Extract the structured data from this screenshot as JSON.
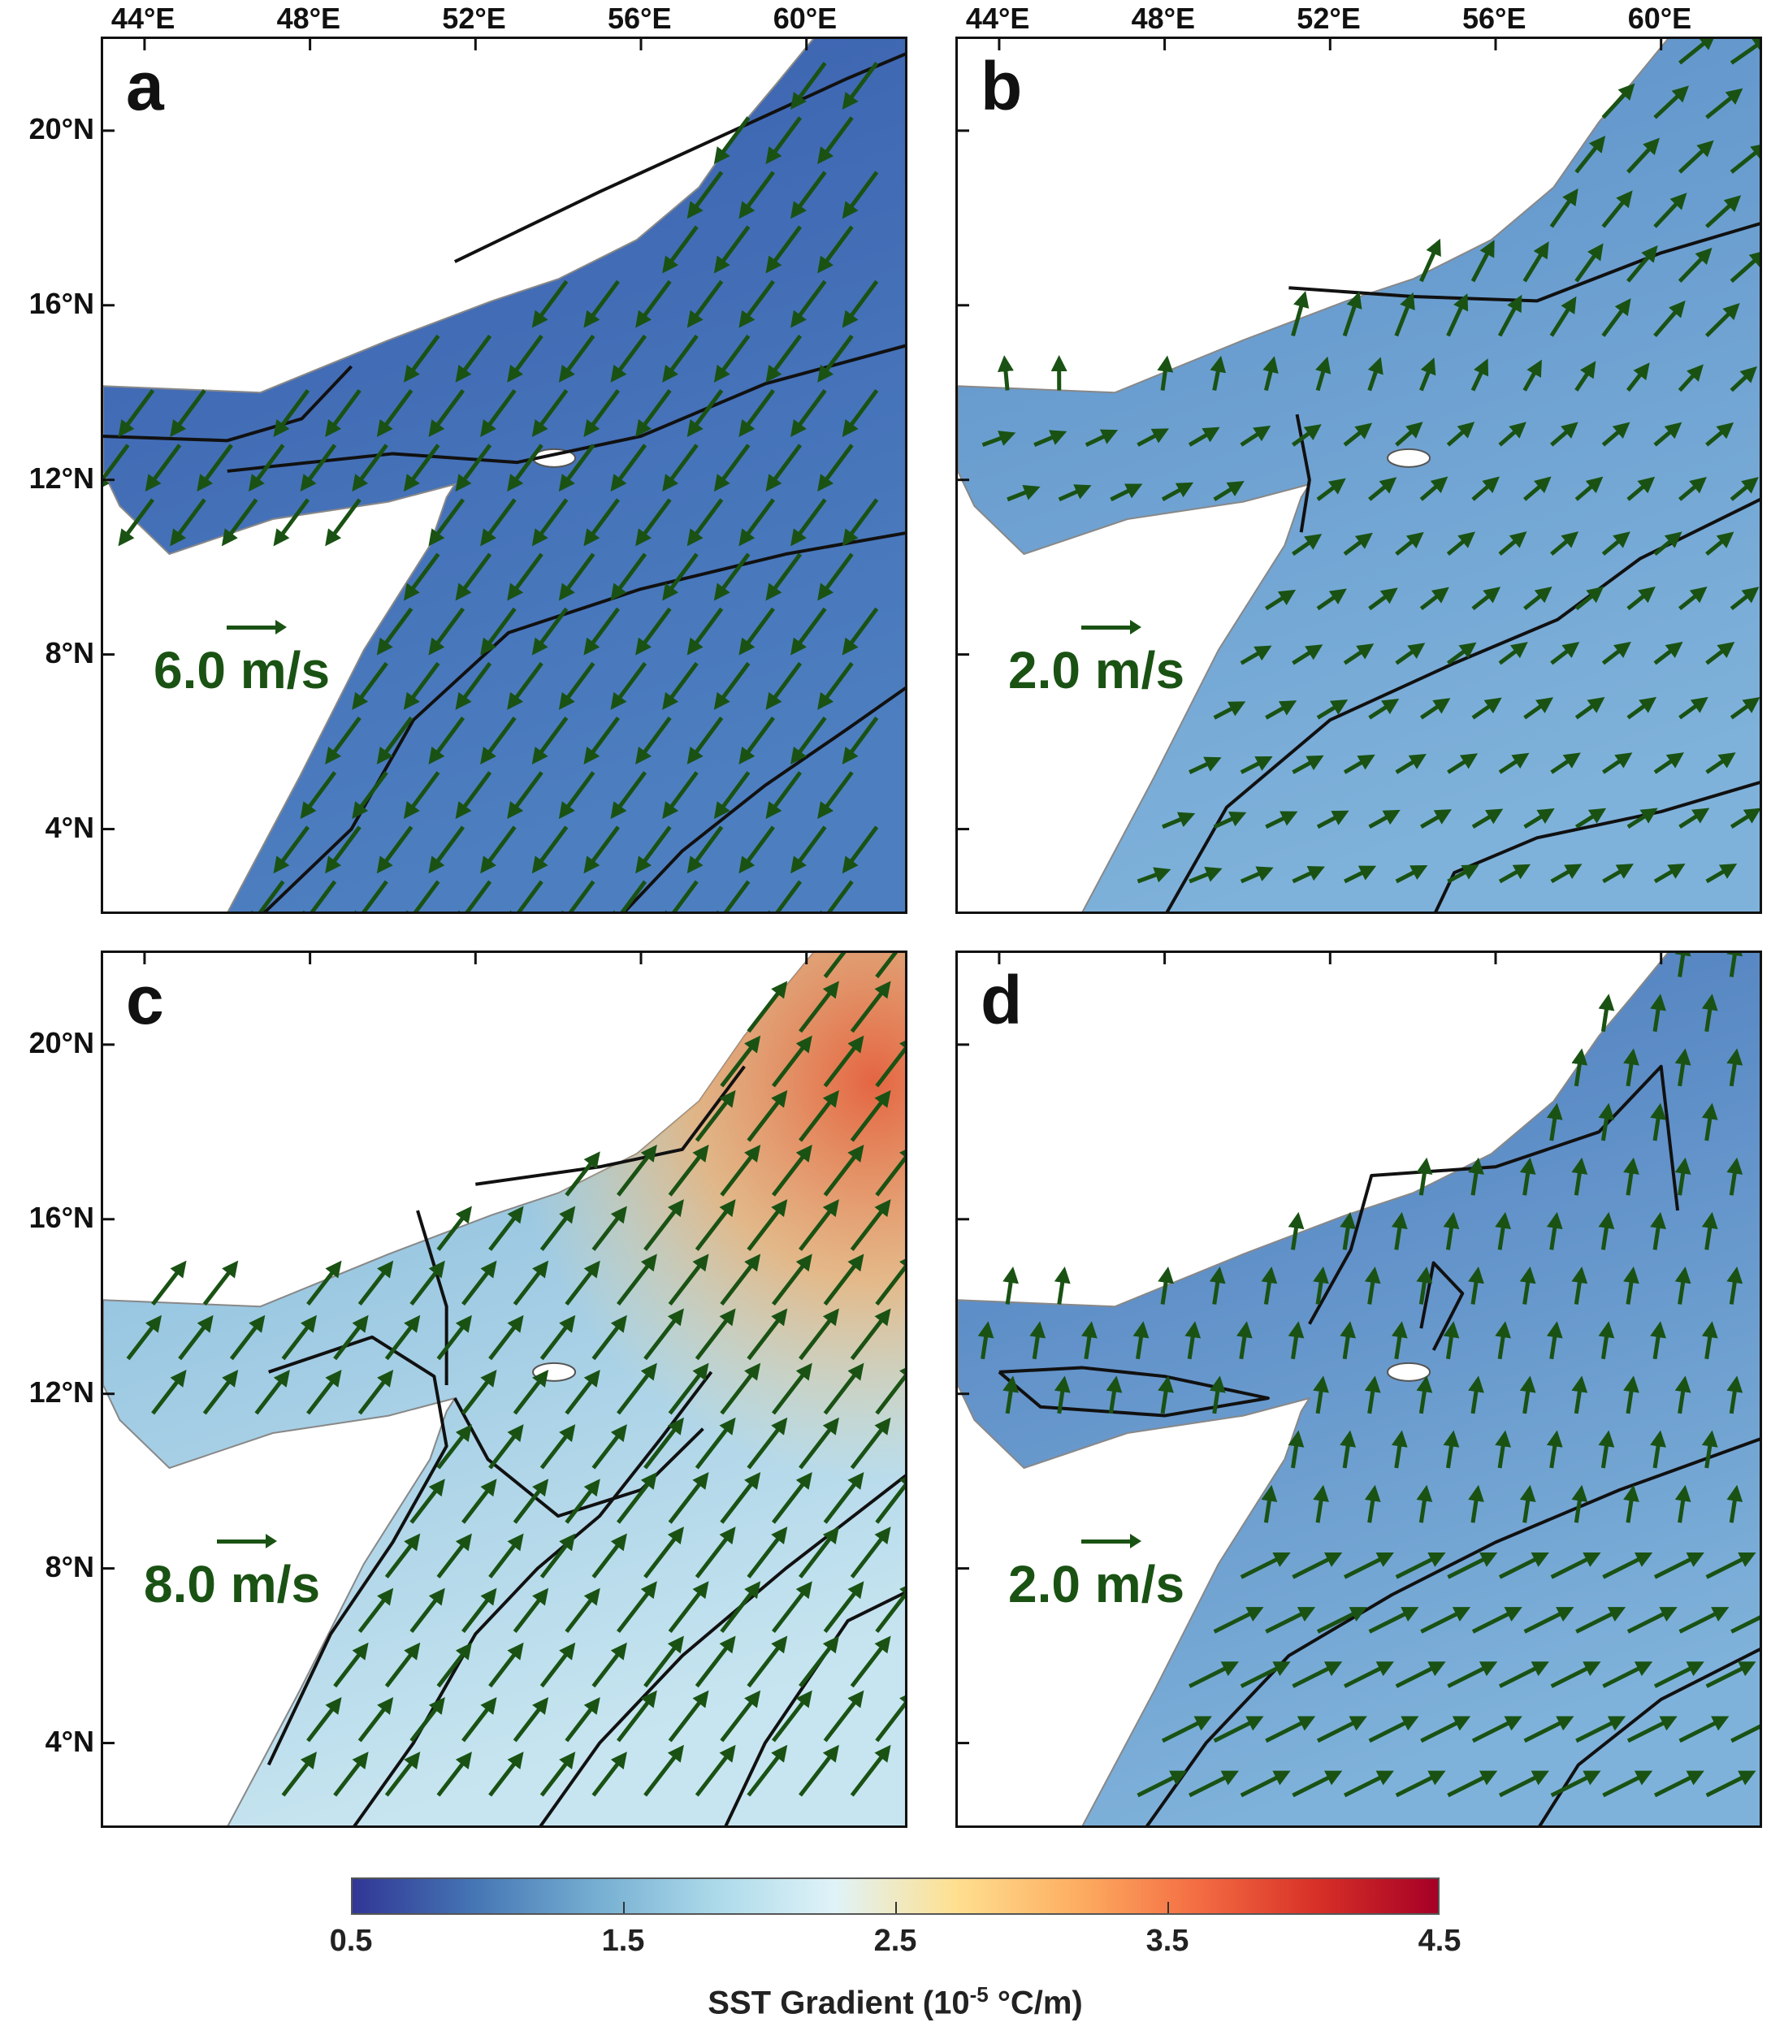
{
  "figure": {
    "lon_ticks": [
      "44°E",
      "48°E",
      "52°E",
      "56°E",
      "60°E"
    ],
    "lon_tick_values": [
      44,
      48,
      52,
      56,
      60
    ],
    "lat_ticks": [
      "20°N",
      "16°N",
      "12°N",
      "8°N",
      "4°N"
    ],
    "lat_tick_values": [
      20,
      16,
      12,
      8,
      4
    ],
    "lon_range": [
      43,
      62.5
    ],
    "lat_range": [
      2,
      22.1
    ],
    "panels": [
      {
        "id": "a",
        "label": "a",
        "scale_label": "6.0 m/s",
        "base_color": "#3a5fae",
        "wind": "southwesterly"
      },
      {
        "id": "b",
        "label": "b",
        "scale_label": "2.0 m/s",
        "base_color": "#5b8fc8",
        "wind": "weak variable"
      },
      {
        "id": "c",
        "label": "c",
        "scale_label": "8.0 m/s",
        "base_color": "#9ccbe3",
        "wind": "northeasterly"
      },
      {
        "id": "d",
        "label": "d",
        "scale_label": "2.0 m/s",
        "base_color": "#4a78bb",
        "wind": "northerly"
      }
    ],
    "vector_color": "#1a5214",
    "contour_color": "#111111"
  },
  "colorbar": {
    "title_main": "SST Gradient (10",
    "title_exp": "-5",
    "title_unit": " °C/m)",
    "range": [
      0.5,
      4.5
    ],
    "tick_labels": [
      "0.5",
      "1.5",
      "2.5",
      "3.5",
      "4.5"
    ],
    "tick_values": [
      0.5,
      1.5,
      2.5,
      3.5,
      4.5
    ],
    "colors": [
      "#313695",
      "#4575b4",
      "#74add1",
      "#abd9e9",
      "#e0f3f8",
      "#fee090",
      "#fdae61",
      "#f46d43",
      "#d73027",
      "#a50026"
    ]
  }
}
